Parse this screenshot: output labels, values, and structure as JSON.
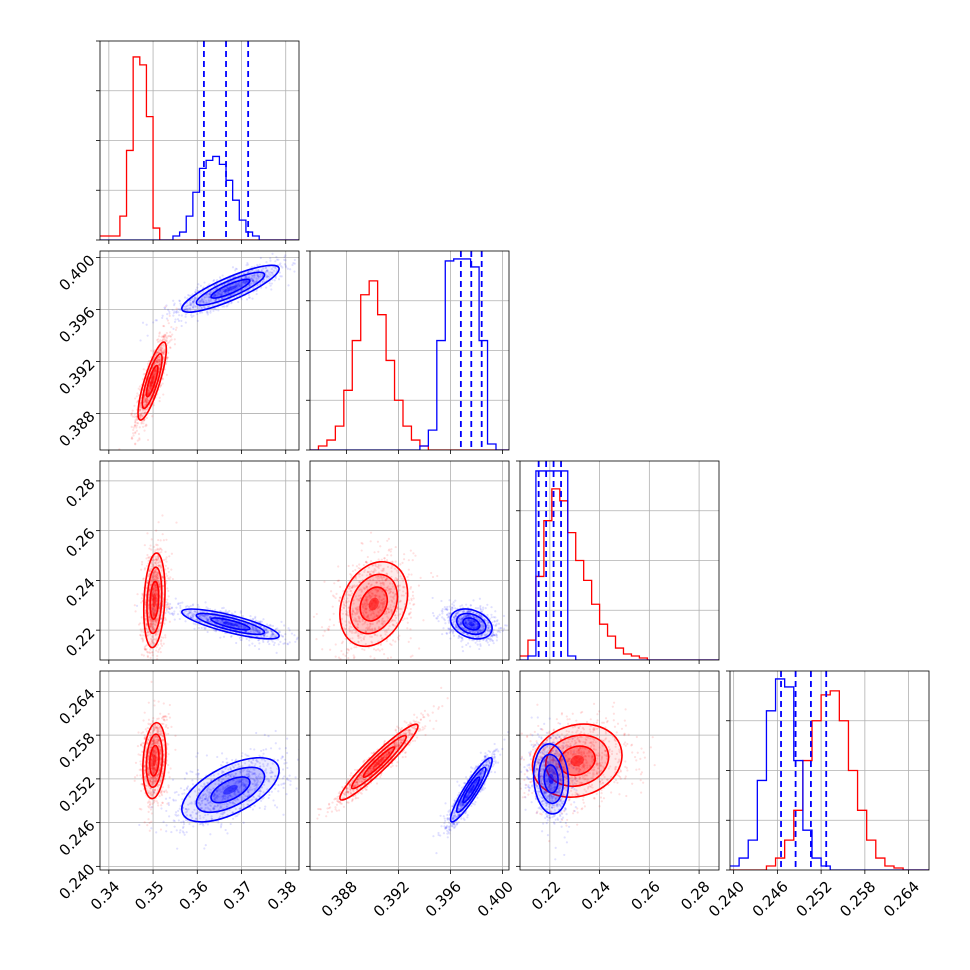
{
  "chart_data": {
    "type": "corner",
    "title": "",
    "grid": true,
    "series": [
      {
        "color": "#ff0000"
      },
      {
        "color": "#0000ff"
      }
    ],
    "params": [
      {
        "index": 0,
        "range": [
          0.338,
          0.383
        ],
        "ticks": [
          "0.34",
          "0.35",
          "0.36",
          "0.37",
          "0.38"
        ]
      },
      {
        "index": 1,
        "range": [
          0.3852,
          0.4005
        ],
        "ticks": [
          "0.388",
          "0.392",
          "0.396",
          "0.400"
        ]
      },
      {
        "index": 2,
        "range": [
          0.208,
          0.288
        ],
        "ticks": [
          "0.22",
          "0.24",
          "0.26",
          "0.28"
        ]
      },
      {
        "index": 3,
        "range": [
          0.2395,
          0.2668
        ],
        "ticks": [
          "0.240",
          "0.246",
          "0.252",
          "0.258",
          "0.264"
        ]
      }
    ],
    "histograms": [
      {
        "param": 0,
        "red": {
          "edges_start": 0.338,
          "bin_width": 0.0015,
          "counts": [
            0.02,
            0.02,
            0.02,
            0.12,
            0.45,
            0.92,
            0.88,
            0.62,
            0.06,
            0.0,
            0.0,
            0.0,
            0.0,
            0.0,
            0.0,
            0.0,
            0.0,
            0.0,
            0.0,
            0.0,
            0.0,
            0.0,
            0.0,
            0.0,
            0.0,
            0.0,
            0.0,
            0.0,
            0.0,
            0.0
          ]
        },
        "blue": {
          "edges_start": 0.338,
          "bin_width": 0.0015,
          "counts": [
            0.0,
            0.0,
            0.0,
            0.0,
            0.0,
            0.0,
            0.0,
            0.0,
            0.0,
            0.0,
            0.0,
            0.02,
            0.04,
            0.12,
            0.24,
            0.36,
            0.4,
            0.42,
            0.38,
            0.3,
            0.2,
            0.1,
            0.04,
            0.02,
            0.0,
            0.0,
            0.0,
            0.0,
            0.0,
            0.0
          ]
        },
        "quantile_lines": [
          0.3615,
          0.3665,
          0.3715
        ]
      },
      {
        "param": 1,
        "red": {
          "edges_start": 0.3852,
          "bin_width": 0.00065,
          "counts": [
            0.0,
            0.02,
            0.05,
            0.12,
            0.3,
            0.55,
            0.78,
            0.85,
            0.68,
            0.45,
            0.25,
            0.12,
            0.05,
            0.02,
            0.0,
            0.0,
            0.0,
            0.0,
            0.0,
            0.0,
            0.0,
            0.0,
            0.0,
            0.0
          ]
        },
        "blue": {
          "edges_start": 0.3852,
          "bin_width": 0.00065,
          "counts": [
            0.0,
            0.0,
            0.0,
            0.0,
            0.0,
            0.0,
            0.0,
            0.0,
            0.0,
            0.0,
            0.0,
            0.0,
            0.0,
            0.02,
            0.1,
            0.55,
            0.95,
            0.96,
            0.96,
            0.92,
            0.55,
            0.03,
            0.0,
            0.0
          ]
        },
        "quantile_lines": [
          0.3968,
          0.3976,
          0.3984
        ]
      },
      {
        "param": 2,
        "red": {
          "edges_start": 0.208,
          "bin_width": 0.0032,
          "counts": [
            0.02,
            0.1,
            0.42,
            0.7,
            0.86,
            0.8,
            0.64,
            0.5,
            0.4,
            0.28,
            0.18,
            0.12,
            0.06,
            0.03,
            0.02,
            0.01,
            0.0,
            0.0,
            0.0,
            0.0,
            0.0,
            0.0,
            0.0,
            0.0,
            0.0
          ]
        },
        "blue": {
          "edges_start": 0.208,
          "bin_width": 0.0032,
          "counts": [
            0.0,
            0.02,
            0.95,
            0.95,
            0.95,
            0.95,
            0.02,
            0.0,
            0.0,
            0.0,
            0.0,
            0.0,
            0.0,
            0.0,
            0.0,
            0.0,
            0.0,
            0.0,
            0.0,
            0.0,
            0.0,
            0.0,
            0.0,
            0.0,
            0.0
          ]
        },
        "quantile_lines": [
          0.2155,
          0.2185,
          0.2215,
          0.2245
        ]
      },
      {
        "param": 3,
        "red": {
          "edges_start": 0.2395,
          "bin_width": 0.00125,
          "counts": [
            0.0,
            0.0,
            0.0,
            0.0,
            0.02,
            0.06,
            0.15,
            0.3,
            0.55,
            0.75,
            0.88,
            0.9,
            0.75,
            0.5,
            0.3,
            0.15,
            0.06,
            0.02,
            0.01,
            0.0,
            0.0,
            0.0
          ]
        },
        "blue": {
          "edges_start": 0.2395,
          "bin_width": 0.00125,
          "counts": [
            0.02,
            0.06,
            0.15,
            0.45,
            0.8,
            0.96,
            0.92,
            0.55,
            0.2,
            0.06,
            0.02,
            0.0,
            0.0,
            0.0,
            0.0,
            0.0,
            0.0,
            0.0,
            0.0,
            0.0,
            0.0,
            0.0
          ]
        },
        "quantile_lines": [
          0.2465,
          0.2485,
          0.2506,
          0.2527
        ]
      }
    ],
    "pairs": [
      {
        "row": 1,
        "col": 0,
        "red": {
          "mean": [
            0.3498,
            0.3905
          ],
          "sd": [
            0.0016,
            0.0015
          ],
          "rho": 0.82
        },
        "blue": {
          "mean": [
            0.3675,
            0.3976
          ],
          "sd": [
            0.0055,
            0.0009
          ],
          "rho": 0.85
        }
      },
      {
        "row": 2,
        "col": 0,
        "red": {
          "mean": [
            0.3503,
            0.232
          ],
          "sd": [
            0.0012,
            0.0095
          ],
          "rho": 0.2
        },
        "blue": {
          "mean": [
            0.3675,
            0.2225
          ],
          "sd": [
            0.0055,
            0.003
          ],
          "rho": -0.8
        }
      },
      {
        "row": 2,
        "col": 1,
        "red": {
          "mean": [
            0.3901,
            0.2305
          ],
          "sd": [
            0.0013,
            0.0085
          ],
          "rho": 0.25
        },
        "blue": {
          "mean": [
            0.3976,
            0.2225
          ],
          "sd": [
            0.0008,
            0.003
          ],
          "rho": -0.3
        }
      },
      {
        "row": 3,
        "col": 0,
        "red": {
          "mean": [
            0.3503,
            0.2545
          ],
          "sd": [
            0.0013,
            0.0026
          ],
          "rho": 0.2
        },
        "blue": {
          "mean": [
            0.3675,
            0.2505
          ],
          "sd": [
            0.0055,
            0.0022
          ],
          "rho": 0.6
        }
      },
      {
        "row": 3,
        "col": 1,
        "red": {
          "mean": [
            0.3905,
            0.2543
          ],
          "sd": [
            0.0015,
            0.0026
          ],
          "rho": 0.95
        },
        "blue": {
          "mean": [
            0.3976,
            0.2505
          ],
          "sd": [
            0.0008,
            0.0022
          ],
          "rho": 0.92
        }
      },
      {
        "row": 3,
        "col": 2,
        "red": {
          "mean": [
            0.231,
            0.2545
          ],
          "sd": [
            0.009,
            0.0025
          ],
          "rho": 0.15
        },
        "blue": {
          "mean": [
            0.2205,
            0.252
          ],
          "sd": [
            0.0035,
            0.0024
          ],
          "rho": -0.1
        }
      }
    ]
  }
}
